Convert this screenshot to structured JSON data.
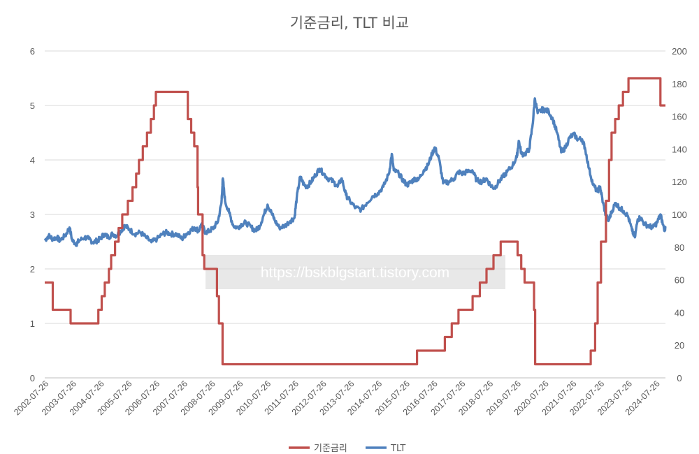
{
  "chart_data": {
    "type": "line",
    "title": "기준금리, TLT 비교",
    "xlabel": "",
    "ylabel_left": "",
    "ylabel_right": "",
    "x_tick_labels": [
      "2002-07-26",
      "2003-07-26",
      "2004-07-26",
      "2005-07-26",
      "2006-07-26",
      "2007-07-26",
      "2008-07-26",
      "2009-07-26",
      "2010-07-26",
      "2011-07-26",
      "2012-07-26",
      "2013-07-26",
      "2014-07-26",
      "2015-07-26",
      "2016-07-26",
      "2017-07-26",
      "2018-07-26",
      "2019-07-26",
      "2020-07-26",
      "2021-07-26",
      "2022-07-26",
      "2023-07-26",
      "2024-07-26"
    ],
    "x_range": [
      2002.56,
      2024.9
    ],
    "y_left": {
      "range": [
        0,
        6
      ],
      "ticks": [
        "0",
        "1",
        "2",
        "3",
        "4",
        "5",
        "6"
      ]
    },
    "y_right": {
      "range": [
        0,
        200
      ],
      "ticks": [
        "0",
        "20",
        "40",
        "60",
        "80",
        "100",
        "120",
        "140",
        "160",
        "180",
        "200"
      ]
    },
    "grid": "horizontal",
    "legend_position": "bottom",
    "watermark": "https://bskblgstart.tistory.com",
    "series": [
      {
        "name": "기준금리",
        "axis": "left",
        "color": "#c0504d",
        "step": true,
        "points": [
          [
            2002.56,
            1.75
          ],
          [
            2002.85,
            1.25
          ],
          [
            2003.49,
            1.0
          ],
          [
            2004.49,
            1.25
          ],
          [
            2004.61,
            1.5
          ],
          [
            2004.72,
            1.75
          ],
          [
            2004.87,
            2.0
          ],
          [
            2004.95,
            2.25
          ],
          [
            2005.09,
            2.5
          ],
          [
            2005.22,
            2.75
          ],
          [
            2005.35,
            3.0
          ],
          [
            2005.55,
            3.25
          ],
          [
            2005.72,
            3.5
          ],
          [
            2005.85,
            3.75
          ],
          [
            2005.95,
            4.0
          ],
          [
            2006.09,
            4.25
          ],
          [
            2006.24,
            4.5
          ],
          [
            2006.38,
            4.75
          ],
          [
            2006.49,
            5.0
          ],
          [
            2006.56,
            5.25
          ],
          [
            2007.71,
            4.75
          ],
          [
            2007.83,
            4.5
          ],
          [
            2007.94,
            4.25
          ],
          [
            2008.06,
            3.5
          ],
          [
            2008.08,
            3.0
          ],
          [
            2008.24,
            2.25
          ],
          [
            2008.3,
            2.0
          ],
          [
            2008.76,
            1.5
          ],
          [
            2008.83,
            1.0
          ],
          [
            2008.96,
            0.25
          ],
          [
            2015.96,
            0.5
          ],
          [
            2016.96,
            0.75
          ],
          [
            2017.21,
            1.0
          ],
          [
            2017.45,
            1.25
          ],
          [
            2017.96,
            1.5
          ],
          [
            2018.22,
            1.75
          ],
          [
            2018.46,
            2.0
          ],
          [
            2018.71,
            2.25
          ],
          [
            2018.97,
            2.5
          ],
          [
            2019.58,
            2.25
          ],
          [
            2019.71,
            2.0
          ],
          [
            2019.83,
            1.75
          ],
          [
            2020.17,
            1.25
          ],
          [
            2020.21,
            0.25
          ],
          [
            2022.21,
            0.5
          ],
          [
            2022.37,
            1.0
          ],
          [
            2022.46,
            1.75
          ],
          [
            2022.58,
            2.5
          ],
          [
            2022.76,
            3.25
          ],
          [
            2022.87,
            4.0
          ],
          [
            2022.96,
            4.5
          ],
          [
            2023.09,
            4.75
          ],
          [
            2023.22,
            5.0
          ],
          [
            2023.37,
            5.25
          ],
          [
            2023.57,
            5.5
          ],
          [
            2024.72,
            5.0
          ],
          [
            2024.9,
            5.0
          ]
        ]
      },
      {
        "name": "TLT",
        "axis": "right",
        "color": "#4f81bd",
        "points": [
          [
            2002.56,
            84
          ],
          [
            2002.7,
            87
          ],
          [
            2002.85,
            85
          ],
          [
            2003.0,
            86
          ],
          [
            2003.1,
            84
          ],
          [
            2003.3,
            87
          ],
          [
            2003.45,
            92
          ],
          [
            2003.55,
            84
          ],
          [
            2003.7,
            82
          ],
          [
            2003.8,
            84
          ],
          [
            2004.0,
            86
          ],
          [
            2004.15,
            85
          ],
          [
            2004.3,
            83
          ],
          [
            2004.45,
            84
          ],
          [
            2004.55,
            85
          ],
          [
            2004.7,
            88
          ],
          [
            2004.85,
            86
          ],
          [
            2005.0,
            88
          ],
          [
            2005.15,
            87
          ],
          [
            2005.3,
            90
          ],
          [
            2005.45,
            93
          ],
          [
            2005.6,
            91
          ],
          [
            2005.8,
            88
          ],
          [
            2006.0,
            89
          ],
          [
            2006.2,
            86
          ],
          [
            2006.4,
            83
          ],
          [
            2006.6,
            85
          ],
          [
            2006.8,
            88
          ],
          [
            2006.95,
            89
          ],
          [
            2007.1,
            88
          ],
          [
            2007.3,
            88
          ],
          [
            2007.5,
            85
          ],
          [
            2007.65,
            88
          ],
          [
            2007.8,
            90
          ],
          [
            2007.95,
            92
          ],
          [
            2008.1,
            90
          ],
          [
            2008.2,
            94
          ],
          [
            2008.35,
            89
          ],
          [
            2008.5,
            90
          ],
          [
            2008.65,
            92
          ],
          [
            2008.8,
            96
          ],
          [
            2008.92,
            107
          ],
          [
            2008.97,
            122
          ],
          [
            2009.05,
            108
          ],
          [
            2009.2,
            101
          ],
          [
            2009.35,
            93
          ],
          [
            2009.5,
            92
          ],
          [
            2009.65,
            94
          ],
          [
            2009.8,
            95
          ],
          [
            2010.0,
            92
          ],
          [
            2010.15,
            90
          ],
          [
            2010.3,
            93
          ],
          [
            2010.45,
            100
          ],
          [
            2010.58,
            106
          ],
          [
            2010.72,
            101
          ],
          [
            2010.85,
            96
          ],
          [
            2011.0,
            92
          ],
          [
            2011.2,
            93
          ],
          [
            2011.4,
            96
          ],
          [
            2011.55,
            98
          ],
          [
            2011.63,
            110
          ],
          [
            2011.75,
            123
          ],
          [
            2011.9,
            118
          ],
          [
            2012.0,
            117
          ],
          [
            2012.15,
            120
          ],
          [
            2012.3,
            124
          ],
          [
            2012.45,
            128
          ],
          [
            2012.6,
            125
          ],
          [
            2012.75,
            122
          ],
          [
            2012.95,
            120
          ],
          [
            2013.1,
            117
          ],
          [
            2013.25,
            122
          ],
          [
            2013.4,
            112
          ],
          [
            2013.55,
            108
          ],
          [
            2013.75,
            104
          ],
          [
            2013.95,
            103
          ],
          [
            2014.15,
            107
          ],
          [
            2014.35,
            111
          ],
          [
            2014.55,
            113
          ],
          [
            2014.75,
            117
          ],
          [
            2014.95,
            125
          ],
          [
            2015.05,
            137
          ],
          [
            2015.12,
            127
          ],
          [
            2015.3,
            125
          ],
          [
            2015.45,
            121
          ],
          [
            2015.6,
            118
          ],
          [
            2015.75,
            120
          ],
          [
            2015.9,
            122
          ],
          [
            2016.0,
            121
          ],
          [
            2016.2,
            127
          ],
          [
            2016.35,
            130
          ],
          [
            2016.5,
            137
          ],
          [
            2016.6,
            141
          ],
          [
            2016.75,
            134
          ],
          [
            2016.9,
            119
          ],
          [
            2017.1,
            120
          ],
          [
            2017.3,
            122
          ],
          [
            2017.45,
            126
          ],
          [
            2017.6,
            125
          ],
          [
            2017.75,
            126
          ],
          [
            2017.95,
            127
          ],
          [
            2018.1,
            121
          ],
          [
            2018.3,
            120
          ],
          [
            2018.45,
            122
          ],
          [
            2018.6,
            118
          ],
          [
            2018.75,
            116
          ],
          [
            2018.9,
            120
          ],
          [
            2019.05,
            123
          ],
          [
            2019.2,
            126
          ],
          [
            2019.4,
            130
          ],
          [
            2019.55,
            135
          ],
          [
            2019.62,
            145
          ],
          [
            2019.72,
            137
          ],
          [
            2019.85,
            137
          ],
          [
            2020.0,
            140
          ],
          [
            2020.12,
            155
          ],
          [
            2020.2,
            171
          ],
          [
            2020.3,
            162
          ],
          [
            2020.45,
            164
          ],
          [
            2020.55,
            164
          ],
          [
            2020.7,
            163
          ],
          [
            2020.85,
            158
          ],
          [
            2021.0,
            150
          ],
          [
            2021.15,
            138
          ],
          [
            2021.3,
            141
          ],
          [
            2021.45,
            147
          ],
          [
            2021.6,
            149
          ],
          [
            2021.75,
            146
          ],
          [
            2021.9,
            146
          ],
          [
            2022.0,
            141
          ],
          [
            2022.15,
            128
          ],
          [
            2022.3,
            118
          ],
          [
            2022.45,
            114
          ],
          [
            2022.55,
            117
          ],
          [
            2022.65,
            107
          ],
          [
            2022.75,
            100
          ],
          [
            2022.85,
            96
          ],
          [
            2022.95,
            101
          ],
          [
            2023.1,
            107
          ],
          [
            2023.25,
            104
          ],
          [
            2023.4,
            102
          ],
          [
            2023.55,
            99
          ],
          [
            2023.7,
            90
          ],
          [
            2023.8,
            86
          ],
          [
            2023.9,
            97
          ],
          [
            2024.0,
            98
          ],
          [
            2024.15,
            94
          ],
          [
            2024.3,
            93
          ],
          [
            2024.45,
            92
          ],
          [
            2024.6,
            95
          ],
          [
            2024.72,
            100
          ],
          [
            2024.85,
            91
          ],
          [
            2024.9,
            92
          ]
        ]
      }
    ]
  }
}
